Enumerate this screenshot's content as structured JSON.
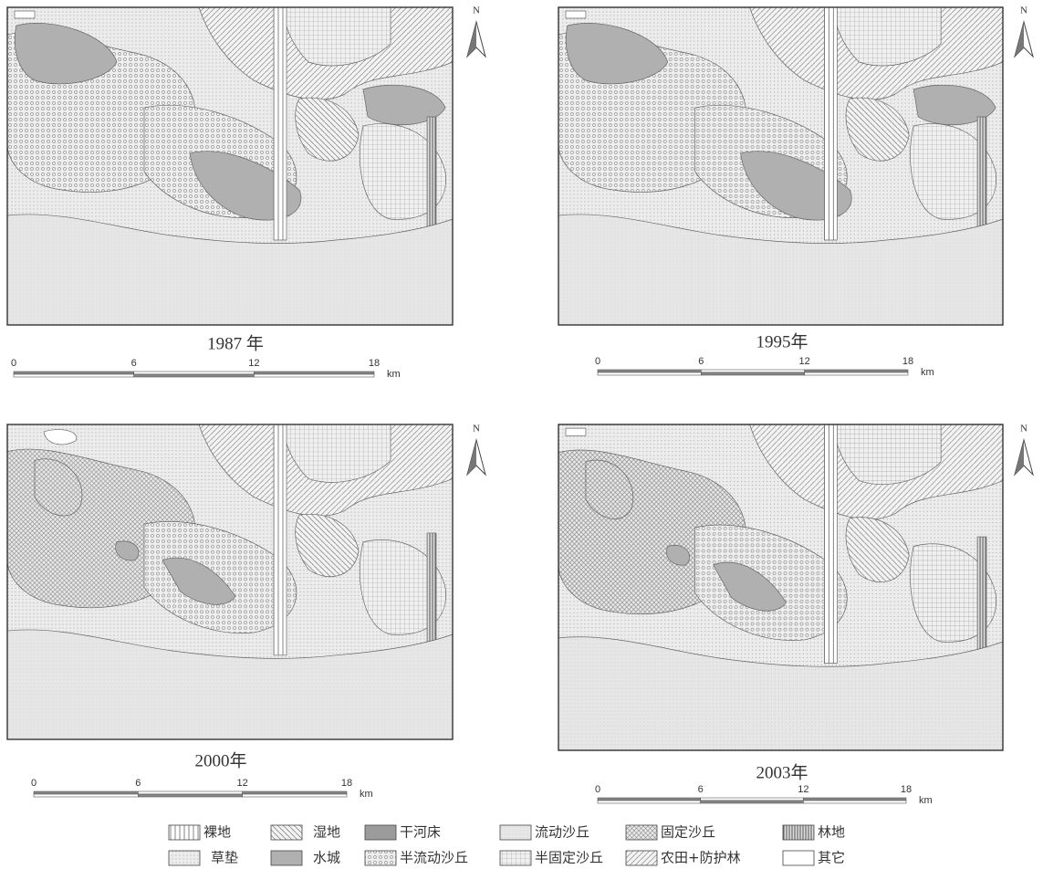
{
  "panels": [
    {
      "year": "1987 年",
      "north": "N",
      "scale": {
        "ticks": [
          "0",
          "6",
          "12",
          "18"
        ],
        "unit": "km"
      }
    },
    {
      "year": "1995年",
      "north": "N",
      "scale": {
        "ticks": [
          "0",
          "6",
          "12",
          "18"
        ],
        "unit": "km"
      }
    },
    {
      "year": "2000年",
      "north": "N",
      "scale": {
        "ticks": [
          "0",
          "6",
          "12",
          "18"
        ],
        "unit": "km"
      }
    },
    {
      "year": "2003年",
      "north": "N",
      "scale": {
        "ticks": [
          "0",
          "6",
          "12",
          "18"
        ],
        "unit": "km"
      }
    }
  ],
  "legend": [
    {
      "label": "裸地"
    },
    {
      "label": "湿地"
    },
    {
      "label": "干河床"
    },
    {
      "label": "流动沙丘"
    },
    {
      "label": "固定沙丘"
    },
    {
      "label": "林地"
    },
    {
      "label": "草垫"
    },
    {
      "label": "水城"
    },
    {
      "label": "半流动沙丘"
    },
    {
      "label": "半固定沙丘"
    },
    {
      "label": "农田+防护林"
    },
    {
      "label": "其它"
    }
  ]
}
